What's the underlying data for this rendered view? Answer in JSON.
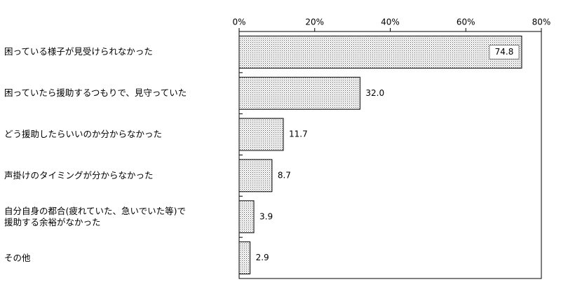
{
  "chart_data": {
    "type": "hbar",
    "categories": [
      "困っている様子が見受けられなかった",
      "困っていたら援助するつもりで、見守っていた",
      "どう援助したらいいのか分からなかった",
      "声掛けのタイミングが分からなかった",
      "自分自身の都合(疲れていた、急いでいた等)で\n援助する余裕がなかった",
      "その他"
    ],
    "values": [
      74.8,
      32.0,
      11.7,
      8.7,
      3.9,
      2.9
    ],
    "value_labels": [
      "74.8",
      "32.0",
      "11.7",
      "8.7",
      "3.9",
      "2.9"
    ],
    "color": "#d8d8d8",
    "xlim": [
      0,
      80
    ],
    "xticks": [
      {
        "value": 0,
        "label": "0%"
      },
      {
        "value": 20,
        "label": "20%"
      },
      {
        "value": 40,
        "label": "40%"
      },
      {
        "value": 60,
        "label": "60%"
      },
      {
        "value": 80,
        "label": "80%"
      }
    ],
    "grid": false
  }
}
